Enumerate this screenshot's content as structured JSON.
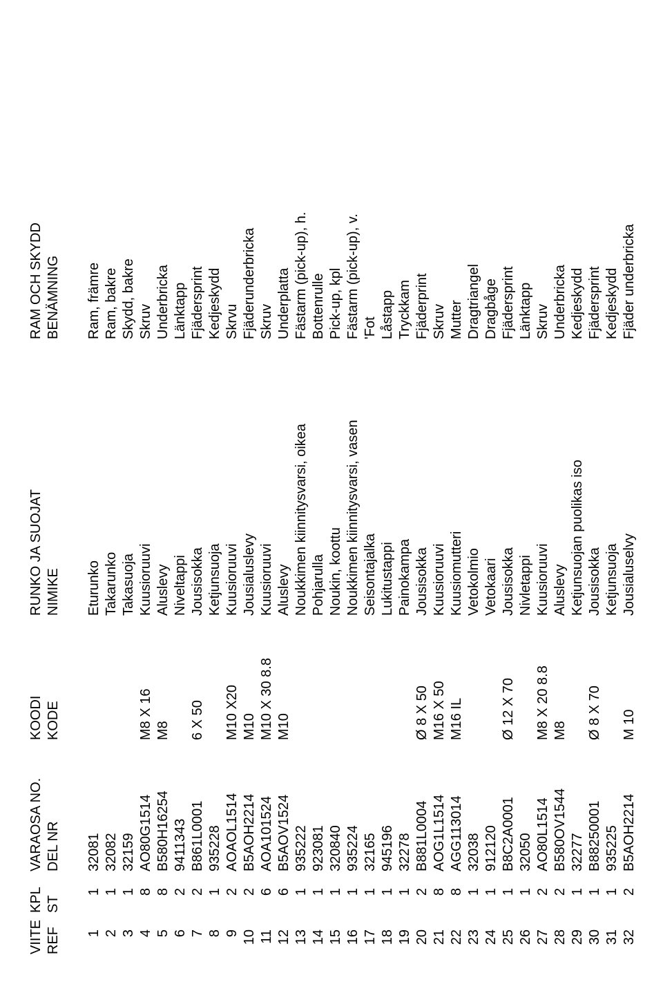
{
  "headers": {
    "ref": [
      "VIITE",
      "REF"
    ],
    "qty": [
      "KPL",
      "ST"
    ],
    "part": [
      "VARAOSA NO.",
      "DEL NR"
    ],
    "code": [
      "KOODI",
      "KODE"
    ],
    "fi": [
      "RUNKO JA SUOJAT",
      "NIMIKE"
    ],
    "sv": [
      "RAM OCH SKYDD",
      "BENÄMNING"
    ]
  },
  "rows": [
    {
      "ref": "1",
      "qty": "1",
      "part": "32081",
      "code": "",
      "fi": "Eturunko",
      "sv": "Ram, främre"
    },
    {
      "ref": "2",
      "qty": "1",
      "part": "32082",
      "code": "",
      "fi": "Takarunko",
      "sv": "Ram, bakre"
    },
    {
      "ref": "3",
      "qty": "1",
      "part": "32159",
      "code": "",
      "fi": "Takasuoja",
      "sv": "Skydd, bakre"
    },
    {
      "ref": "4",
      "qty": "8",
      "part": "AO80G1514",
      "code": "M8 X 16",
      "fi": "Kuusioruuvi",
      "sv": "Skruv"
    },
    {
      "ref": "5",
      "qty": "8",
      "part": "B580H16254",
      "code": "M8",
      "fi": "Aluslevy",
      "sv": "Underbricka"
    },
    {
      "ref": "6",
      "qty": "2",
      "part": "9411343",
      "code": "",
      "fi": "Niveltappi",
      "sv": "Länktapp"
    },
    {
      "ref": "7",
      "qty": "2",
      "part": "B861L0001",
      "code": "6 X 50",
      "fi": "Jousisokka",
      "sv": "Fjädersprint"
    },
    {
      "ref": "8",
      "qty": "1",
      "part": "935228",
      "code": "",
      "fi": "Ketjunsuoja",
      "sv": "Kedjeskydd"
    },
    {
      "ref": "9",
      "qty": "2",
      "part": "AOAOL1514",
      "code": "M10 X20",
      "fi": "Kuusioruuvi",
      "sv": "Skrvu"
    },
    {
      "ref": "10",
      "qty": "2",
      "part": "B5AOH2214",
      "code": "M10",
      "fi": "Jousialuslevy",
      "sv": "Fjäderunderbricka"
    },
    {
      "ref": "11",
      "qty": "6",
      "part": "AOA101524",
      "code": "M10 X 30 8.8",
      "fi": "Kuusioruuvi",
      "sv": "Skruv"
    },
    {
      "ref": "12",
      "qty": "6",
      "part": "B5AOV1524",
      "code": "M10",
      "fi": "Aluslevy",
      "sv": "Underplatta"
    },
    {
      "ref": "13",
      "qty": "1",
      "part": "935222",
      "code": "",
      "fi": "Noukkimen kiinnitysvarsi, oikea",
      "sv": "Fästarm (pick-up), h."
    },
    {
      "ref": "14",
      "qty": "1",
      "part": "923081",
      "code": "",
      "fi": "Pohjarulla",
      "sv": "Bottenrulle"
    },
    {
      "ref": "15",
      "qty": "1",
      "part": "320840",
      "code": "",
      "fi": "Noukin, koottu",
      "sv": "Pick-up, kpl"
    },
    {
      "ref": "16",
      "qty": "1",
      "part": "935224",
      "code": "",
      "fi": "Noukkimen kiinnitysvarsi, vasen",
      "sv": "Fästarm (pick-up), v."
    },
    {
      "ref": "17",
      "qty": "1",
      "part": "32165",
      "code": "",
      "fi": "Seisontajalka",
      "sv": "'Fot"
    },
    {
      "ref": "18",
      "qty": "1",
      "part": "945196",
      "code": "",
      "fi": "Lukitustappi",
      "sv": "Låstapp"
    },
    {
      "ref": "19",
      "qty": "1",
      "part": "32278",
      "code": "",
      "fi": "Painokampa",
      "sv": "Tryckkam"
    },
    {
      "ref": "20",
      "qty": "2",
      "part": "B881L0004",
      "code": "Ø  8 X 50",
      "fi": "Jousisokka",
      "sv": "Fjäderprint"
    },
    {
      "ref": "21",
      "qty": "8",
      "part": "AOG1L1514",
      "code": "M16 X 50",
      "fi": "Kuusioruuvi",
      "sv": "Skruv"
    },
    {
      "ref": "22",
      "qty": "8",
      "part": "AGG113014",
      "code": "M16 IL",
      "fi": "Kuusiomutteri",
      "sv": "Mutter"
    },
    {
      "ref": "23",
      "qty": "1",
      "part": "32038",
      "code": "",
      "fi": "Vetokolmio",
      "sv": "Dragtriangel"
    },
    {
      "ref": "24",
      "qty": "1",
      "part": "912120",
      "code": "",
      "fi": "Vetokaari",
      "sv": "Dragbåge"
    },
    {
      "ref": "25",
      "qty": "1",
      "part": "B8C2A0001",
      "code": "Ø  12 X 70",
      "fi": "Jousisokka",
      "sv": "Fjädersprint"
    },
    {
      "ref": "26",
      "qty": "1",
      "part": "32050",
      "code": "",
      "fi": "Nivletappi",
      "sv": "Länktapp"
    },
    {
      "ref": "27",
      "qty": "2",
      "part": "AO80L1514",
      "code": "M8 X 20 8.8",
      "fi": "Kuusioruuvi",
      "sv": "Skruv"
    },
    {
      "ref": "28",
      "qty": "2",
      "part": "B580OV1544",
      "code": "M8",
      "fi": "Aluslevy",
      "sv": "Underbricka"
    },
    {
      "ref": "29",
      "qty": "1",
      "part": "32277",
      "code": "",
      "fi": "Ketjunsuojan puolikas iso",
      "sv": "Kedjeskydd"
    },
    {
      "ref": "30",
      "qty": "1",
      "part": "B88250001",
      "code": "Ø  8 X 70",
      "fi": "Jousisokka",
      "sv": "Fjädersprint"
    },
    {
      "ref": "31",
      "qty": "1",
      "part": "935225",
      "code": "",
      "fi": "Ketjunsuoja",
      "sv": "Kedjeskydd"
    },
    {
      "ref": "32",
      "qty": "2",
      "part": "B5AOH2214",
      "code": "M 10",
      "fi": "Jousialuselvy",
      "sv": "Fjäder underbricka"
    }
  ]
}
